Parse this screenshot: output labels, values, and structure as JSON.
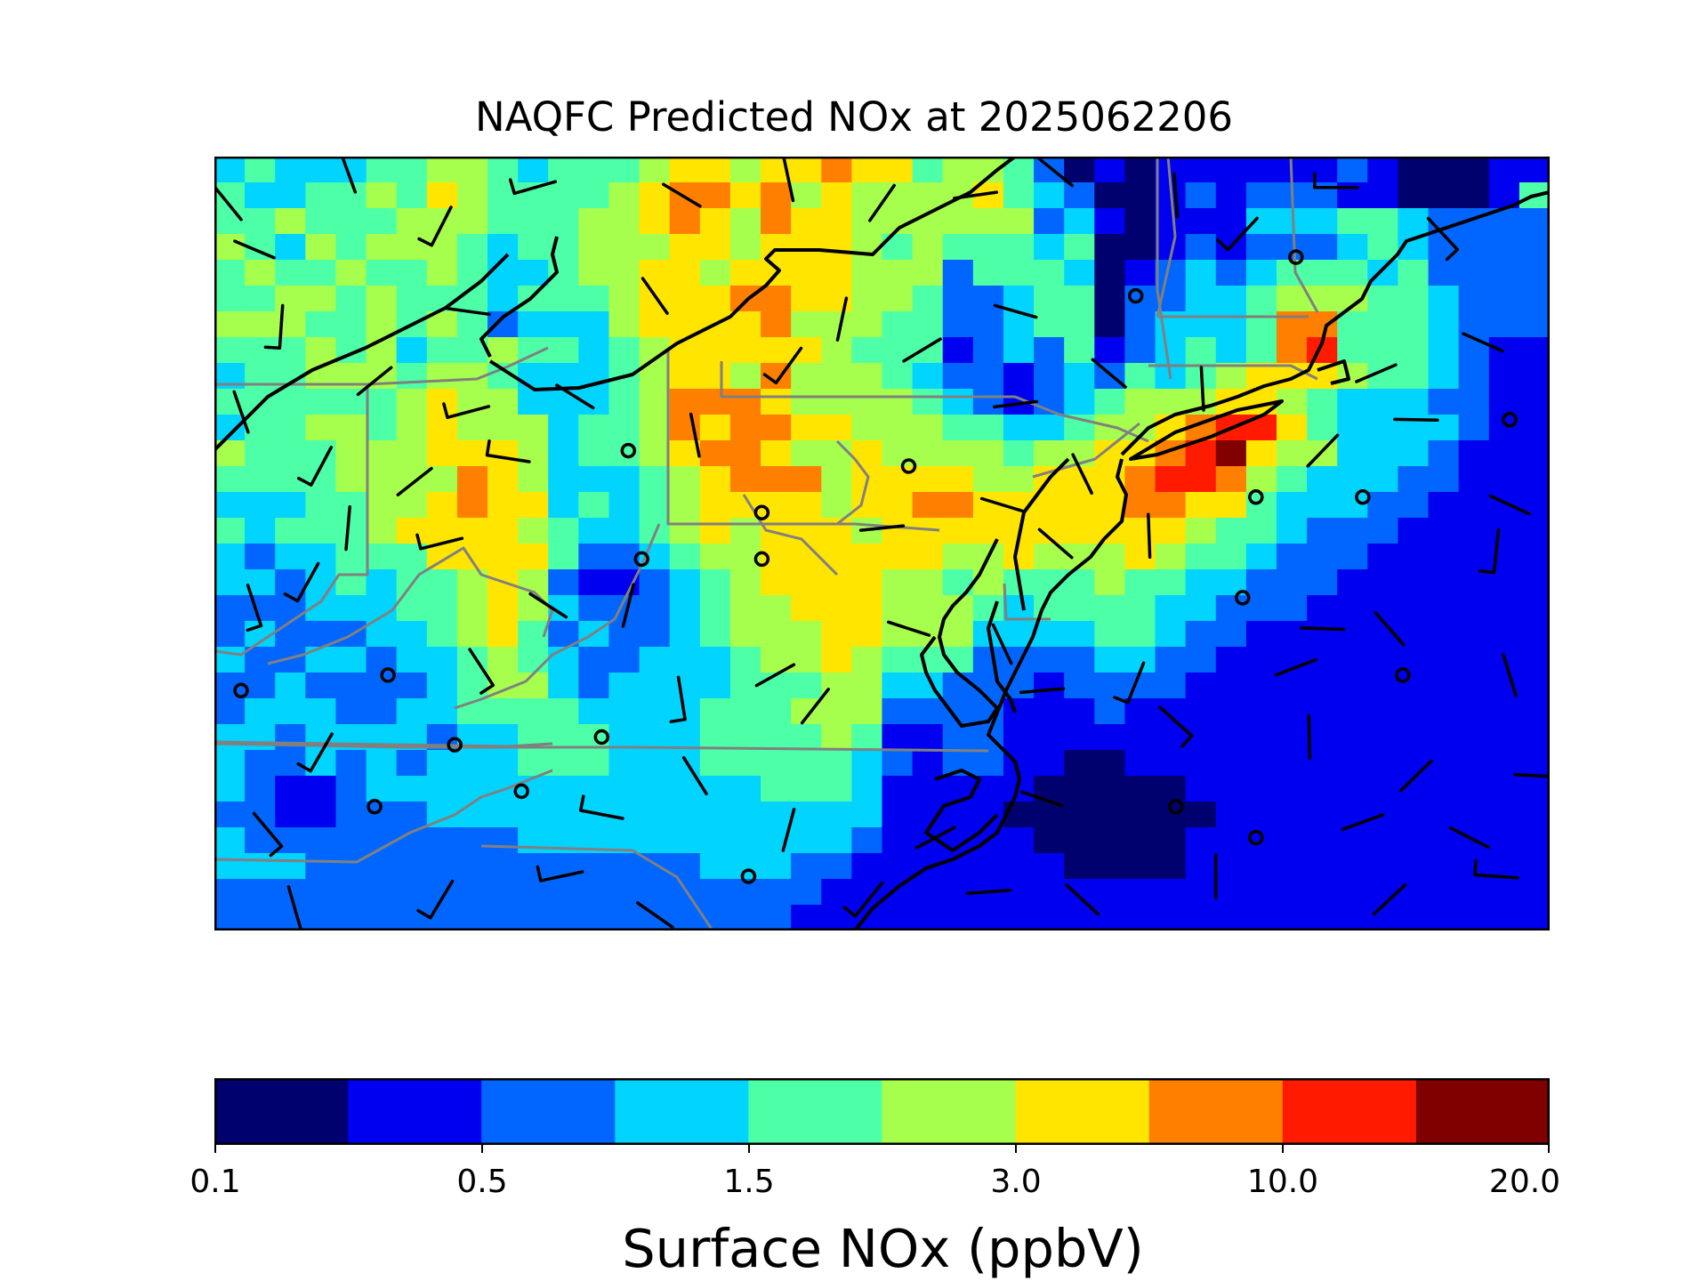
{
  "title": "NAQFC Predicted NOx at 2025062206",
  "colorbar": {
    "label": "Surface NOx (ppbV)",
    "ticks": [
      "0.1",
      "0.5",
      "1.5",
      "3.0",
      "10.0",
      "20.0"
    ],
    "colors": [
      "#00006e",
      "#0000f0",
      "#0066ff",
      "#00d4ff",
      "#4dffa6",
      "#a6ff4d",
      "#ffe500",
      "#ff7f00",
      "#ff1a00",
      "#800000"
    ]
  },
  "chart_data": {
    "type": "heatmap",
    "title": "NAQFC Predicted NOx at 2025062206",
    "colorbar_label": "Surface NOx (ppbV)",
    "colorbar_ticks": [
      0.1,
      0.5,
      1.5,
      3.0,
      10.0,
      20.0
    ],
    "color_levels": 10,
    "grid_rows": [
      "34333445543444566566766455420101111112100011",
      "43344546544445677675655556432001212221100014",
      "44544455544455676576655555523101113334432222",
      "54354555434455566566654544434001212223432222",
      "45445445433455665666655524443012323444342222",
      "44554544434445666776655422344022334555443222",
      "55544545423335666675554422344023334774443222",
      "44454534454434566666544412324123434784443211",
      "34455545543334566575554322123243456665443211",
      "44444456553334577765555432123455566543332211",
      "34455456555344576776655544334556788643333211",
      "54445556665344567765565555455667896553332111",
      "44445555765333456777566665566678875433322111",
      "33344556766343456666566776666677664333221111",
      "43444566665433456566656666666666544322211111",
      "32334446666422345566666655655565443222111111",
      "33234344565211234566665545444544332221111111",
      "22233344565322234556665554344443322211111111",
      "23222334564232234555665553333443221111111111",
      "32233233454322333455654442222332211111111111",
      "22322223455323333444553322212222111111111111",
      "23332233444433334445552222111211111111111111",
      "33233332334443334444541122111111111111111111",
      "32232323334443334444432122110011111111111111",
      "32112333333333333344431111100000111111111111",
      "22112223333333333333331111000000011111111111",
      "32222222223333333333321111100000111111111111",
      "33322222222222223332211111110000111111111111",
      "22222222222222222222111111111111111111111111",
      "22222222222222222221111111111111111111111111"
    ]
  },
  "wind_stations": [
    [
      0.03,
      0.12,
      "dash"
    ],
    [
      0.1,
      0.02,
      "dash"
    ],
    [
      0.17,
      0.09,
      "barb"
    ],
    [
      0.24,
      0.04,
      "barb"
    ],
    [
      0.35,
      0.05,
      "dash"
    ],
    [
      0.43,
      0.03,
      "dash"
    ],
    [
      0.5,
      0.06,
      "dash"
    ],
    [
      0.57,
      0.05,
      "dash"
    ],
    [
      0.63,
      0.02,
      "dash"
    ],
    [
      0.72,
      0.05,
      "dash"
    ],
    [
      0.77,
      0.1,
      "barb"
    ],
    [
      0.84,
      0.04,
      "barb"
    ],
    [
      0.92,
      0.1,
      "barb"
    ],
    [
      0.05,
      0.22,
      "barb"
    ],
    [
      0.12,
      0.29,
      "dash"
    ],
    [
      0.19,
      0.2,
      "dash"
    ],
    [
      0.33,
      0.18,
      "dash"
    ],
    [
      0.47,
      0.21,
      "dash"
    ],
    [
      0.53,
      0.25,
      "dash"
    ],
    [
      0.6,
      0.2,
      "dash"
    ],
    [
      0.69,
      0.18,
      "circle"
    ],
    [
      0.81,
      0.13,
      "circle"
    ],
    [
      0.87,
      0.28,
      "dash"
    ],
    [
      0.95,
      0.24,
      "dash"
    ],
    [
      0.02,
      0.33,
      "dash"
    ],
    [
      0.08,
      0.4,
      "barb"
    ],
    [
      0.19,
      0.33,
      "barb"
    ],
    [
      0.27,
      0.31,
      "dash"
    ],
    [
      0.36,
      0.36,
      "dash"
    ],
    [
      0.43,
      0.27,
      "barb"
    ],
    [
      0.6,
      0.32,
      "dash"
    ],
    [
      0.67,
      0.28,
      "dash"
    ],
    [
      0.74,
      0.3,
      "dash"
    ],
    [
      0.83,
      0.38,
      "dash"
    ],
    [
      0.9,
      0.34,
      "dash"
    ],
    [
      0.97,
      0.34,
      "circle"
    ],
    [
      0.1,
      0.48,
      "dash"
    ],
    [
      0.15,
      0.42,
      "dash"
    ],
    [
      0.22,
      0.39,
      "barb"
    ],
    [
      0.31,
      0.38,
      "circle"
    ],
    [
      0.41,
      0.46,
      "circle"
    ],
    [
      0.52,
      0.4,
      "circle"
    ],
    [
      0.59,
      0.45,
      "dash"
    ],
    [
      0.65,
      0.41,
      "dash"
    ],
    [
      0.78,
      0.44,
      "circle"
    ],
    [
      0.86,
      0.44,
      "circle"
    ],
    [
      0.97,
      0.45,
      "dash"
    ],
    [
      0.03,
      0.58,
      "barb"
    ],
    [
      0.07,
      0.55,
      "barb"
    ],
    [
      0.17,
      0.5,
      "barb"
    ],
    [
      0.25,
      0.58,
      "dash"
    ],
    [
      0.32,
      0.52,
      "circle"
    ],
    [
      0.41,
      0.52,
      "circle"
    ],
    [
      0.5,
      0.48,
      "dash"
    ],
    [
      0.63,
      0.5,
      "dash"
    ],
    [
      0.7,
      0.49,
      "dash"
    ],
    [
      0.77,
      0.57,
      "circle"
    ],
    [
      0.83,
      0.61,
      "dash"
    ],
    [
      0.88,
      0.61,
      "dash"
    ],
    [
      0.96,
      0.51,
      "barb"
    ],
    [
      0.02,
      0.69,
      "circle"
    ],
    [
      0.13,
      0.67,
      "circle"
    ],
    [
      0.2,
      0.66,
      "barb"
    ],
    [
      0.31,
      0.58,
      "dash"
    ],
    [
      0.42,
      0.67,
      "dash"
    ],
    [
      0.52,
      0.61,
      "dash"
    ],
    [
      0.59,
      0.63,
      "dash"
    ],
    [
      0.69,
      0.68,
      "barb"
    ],
    [
      0.81,
      0.66,
      "dash"
    ],
    [
      0.89,
      0.67,
      "circle"
    ],
    [
      0.97,
      0.67,
      "dash"
    ],
    [
      0.08,
      0.77,
      "barb"
    ],
    [
      0.18,
      0.76,
      "circle"
    ],
    [
      0.29,
      0.75,
      "circle"
    ],
    [
      0.35,
      0.7,
      "barb"
    ],
    [
      0.45,
      0.71,
      "dash"
    ],
    [
      0.62,
      0.69,
      "dash"
    ],
    [
      0.72,
      0.73,
      "barb"
    ],
    [
      0.82,
      0.75,
      "dash"
    ],
    [
      0.9,
      0.8,
      "dash"
    ],
    [
      0.99,
      0.8,
      "dash"
    ],
    [
      0.04,
      0.87,
      "barb"
    ],
    [
      0.12,
      0.84,
      "circle"
    ],
    [
      0.23,
      0.82,
      "circle"
    ],
    [
      0.29,
      0.85,
      "barb"
    ],
    [
      0.36,
      0.8,
      "dash"
    ],
    [
      0.43,
      0.87,
      "dash"
    ],
    [
      0.54,
      0.88,
      "dash"
    ],
    [
      0.62,
      0.83,
      "dash"
    ],
    [
      0.72,
      0.84,
      "circle"
    ],
    [
      0.78,
      0.88,
      "circle"
    ],
    [
      0.86,
      0.86,
      "dash"
    ],
    [
      0.94,
      0.88,
      "dash"
    ],
    [
      0.06,
      0.97,
      "dash"
    ],
    [
      0.17,
      0.96,
      "barb"
    ],
    [
      0.26,
      0.93,
      "barb"
    ],
    [
      0.33,
      0.98,
      "dash"
    ],
    [
      0.4,
      0.93,
      "circle"
    ],
    [
      0.49,
      0.96,
      "barb"
    ],
    [
      0.58,
      0.95,
      "dash"
    ],
    [
      0.65,
      0.96,
      "dash"
    ],
    [
      0.75,
      0.93,
      "dash"
    ],
    [
      0.88,
      0.96,
      "dash"
    ],
    [
      0.96,
      0.93,
      "barb"
    ],
    [
      0.01,
      0.06,
      "dash"
    ]
  ]
}
